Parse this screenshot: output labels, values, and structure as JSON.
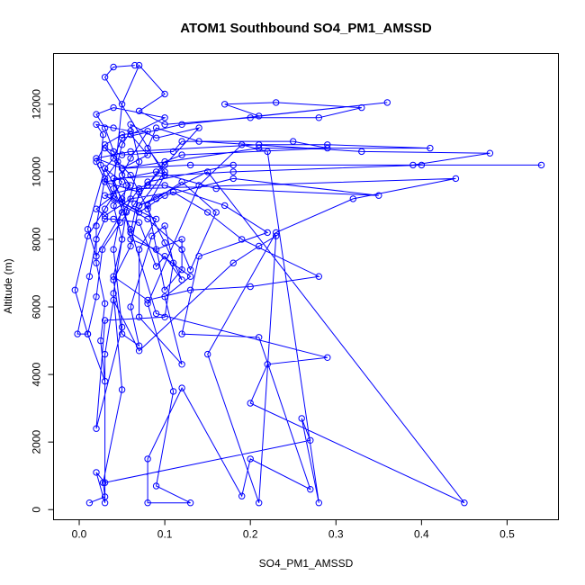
{
  "chart_data": {
    "type": "line",
    "title": "ATOM1 Southbound SO4_PM1_AMSSD",
    "xlabel": "SO4_PM1_AMSSD",
    "ylabel": "Altitude (m)",
    "xlim": [
      -0.03,
      0.56
    ],
    "ylim": [
      -300,
      13500
    ],
    "xticks": [
      0.0,
      0.1,
      0.2,
      0.3,
      0.4,
      0.5
    ],
    "xtick_labels": [
      "0.0",
      "0.1",
      "0.2",
      "0.3",
      "0.4",
      "0.5"
    ],
    "yticks": [
      0,
      2000,
      4000,
      6000,
      8000,
      10000,
      12000
    ],
    "ytick_labels": [
      "0",
      "2000",
      "4000",
      "6000",
      "8000",
      "10000",
      "12000"
    ],
    "grid": false,
    "series_color": "#0000ff",
    "series": [
      {
        "points": [
          [
            0.012,
            200
          ],
          [
            0.03,
            380
          ],
          [
            0.028,
            800
          ],
          [
            0.05,
            3550
          ],
          [
            0.04,
            6400
          ],
          [
            0.055,
            8800
          ],
          [
            0.07,
            10300
          ],
          [
            0.06,
            11400
          ],
          [
            0.09,
            11000
          ],
          [
            0.14,
            11300
          ],
          [
            0.1,
            10200
          ],
          [
            0.08,
            9600
          ],
          [
            0.03,
            9300
          ],
          [
            0.08,
            8600
          ],
          [
            0.12,
            7700
          ],
          [
            0.13,
            7100
          ],
          [
            0.16,
            8800
          ],
          [
            0.12,
            9700
          ],
          [
            0.09,
            9200
          ],
          [
            0.07,
            9000
          ],
          [
            0.15,
            10000
          ],
          [
            0.45,
            200
          ],
          [
            0.2,
            3150
          ],
          [
            0.22,
            4300
          ],
          [
            0.29,
            4500
          ],
          [
            0.09,
            5800
          ],
          [
            0.06,
            8300
          ],
          [
            0.04,
            9500
          ],
          [
            0.05,
            12000
          ],
          [
            0.07,
            13150
          ],
          [
            0.1,
            12300
          ],
          [
            0.07,
            11800
          ],
          [
            0.1,
            11400
          ],
          [
            0.2,
            11600
          ],
          [
            0.28,
            11600
          ],
          [
            0.33,
            11900
          ],
          [
            0.23,
            12050
          ],
          [
            0.17,
            12000
          ],
          [
            0.21,
            11650
          ],
          [
            0.36,
            12050
          ],
          [
            0.12,
            11400
          ],
          [
            0.05,
            11000
          ],
          [
            0.04,
            10400
          ],
          [
            0.03,
            10100
          ],
          [
            0.05,
            9700
          ],
          [
            0.03,
            8900
          ],
          [
            0.01,
            8100
          ],
          [
            -0.005,
            6500
          ],
          [
            0.01,
            5200
          ],
          [
            0.02,
            6300
          ],
          [
            0.027,
            7700
          ],
          [
            0.048,
            8500
          ],
          [
            0.065,
            9050
          ],
          [
            0.08,
            9700
          ],
          [
            0.18,
            10200
          ],
          [
            0.39,
            10200
          ],
          [
            0.48,
            10550
          ],
          [
            0.33,
            10600
          ],
          [
            0.14,
            10900
          ],
          [
            0.09,
            11300
          ],
          [
            0.08,
            10700
          ],
          [
            0.1,
            10000
          ],
          [
            0.07,
            9000
          ],
          [
            0.06,
            7800
          ],
          [
            0.04,
            6800
          ],
          [
            0.05,
            5200
          ],
          [
            0.07,
            4850
          ],
          [
            0.06,
            6000
          ],
          [
            0.085,
            8100
          ],
          [
            0.1,
            8400
          ],
          [
            0.11,
            7300
          ],
          [
            0.1,
            5700
          ],
          [
            0.03,
            5600
          ],
          [
            0.02,
            2400
          ],
          [
            0.05,
            5400
          ],
          [
            0.04,
            7700
          ],
          [
            0.055,
            9600
          ],
          [
            0.03,
            11300
          ],
          [
            0.02,
            11700
          ],
          [
            0.04,
            11900
          ],
          [
            0.1,
            11600
          ],
          [
            0.06,
            11100
          ],
          [
            0.08,
            10500
          ],
          [
            0.05,
            10100
          ],
          [
            0.02,
            10400
          ],
          [
            0.06,
            10600
          ],
          [
            0.21,
            10800
          ],
          [
            0.29,
            10800
          ],
          [
            0.41,
            10700
          ],
          [
            0.21,
            10700
          ],
          [
            0.05,
            10100
          ],
          [
            0.13,
            10200
          ],
          [
            0.54,
            10200
          ],
          [
            0.4,
            10200
          ],
          [
            0.18,
            10000
          ],
          [
            0.04,
            9800
          ],
          [
            0.05,
            9100
          ],
          [
            0.07,
            8800
          ],
          [
            0.1,
            9300
          ],
          [
            0.18,
            9800
          ],
          [
            0.35,
            9300
          ],
          [
            0.16,
            9500
          ],
          [
            0.09,
            10000
          ],
          [
            0.03,
            9700
          ],
          [
            0.07,
            9400
          ],
          [
            0.06,
            8200
          ],
          [
            0.13,
            6900
          ],
          [
            0.1,
            6300
          ],
          [
            0.12,
            4300
          ],
          [
            0.07,
            5700
          ],
          [
            0.07,
            7700
          ],
          [
            0.09,
            8600
          ],
          [
            0.04,
            9200
          ],
          [
            0.02,
            10300
          ],
          [
            0.03,
            10800
          ],
          [
            0.05,
            11100
          ],
          [
            0.08,
            11200
          ],
          [
            0.06,
            10400
          ],
          [
            0.05,
            9900
          ],
          [
            0.06,
            9600
          ],
          [
            0.04,
            9000
          ],
          [
            0.05,
            8000
          ],
          [
            0.04,
            6900
          ],
          [
            0.08,
            6200
          ],
          [
            0.13,
            6500
          ],
          [
            0.2,
            6600
          ],
          [
            0.28,
            6900
          ],
          [
            0.19,
            8000
          ],
          [
            0.15,
            8800
          ],
          [
            0.11,
            9400
          ],
          [
            0.06,
            9200
          ],
          [
            0.03,
            8700
          ],
          [
            0.02,
            8900
          ],
          [
            0.04,
            9300
          ],
          [
            0.025,
            10200
          ],
          [
            0.028,
            11100
          ],
          [
            0.02,
            11400
          ],
          [
            0.04,
            11300
          ],
          [
            0.06,
            11200
          ],
          [
            0.05,
            10800
          ],
          [
            0.045,
            10300
          ],
          [
            0.03,
            9800
          ],
          [
            0.02,
            8400
          ],
          [
            0.02,
            7300
          ],
          [
            0.03,
            6100
          ],
          [
            0.025,
            5000
          ],
          [
            0.03,
            3800
          ],
          [
            0.01,
            5200
          ],
          [
            -0.002,
            5200
          ],
          [
            0.012,
            6900
          ],
          [
            0.02,
            8000
          ],
          [
            0.03,
            8600
          ],
          [
            0.04,
            8600
          ],
          [
            0.07,
            8500
          ],
          [
            0.09,
            7200
          ],
          [
            0.1,
            7500
          ],
          [
            0.12,
            6800
          ],
          [
            0.1,
            7900
          ],
          [
            0.08,
            8900
          ],
          [
            0.06,
            9900
          ],
          [
            0.03,
            10700
          ],
          [
            0.04,
            10600
          ],
          [
            0.05,
            10500
          ],
          [
            0.11,
            10600
          ],
          [
            0.12,
            10900
          ],
          [
            0.25,
            10900
          ],
          [
            0.29,
            10700
          ],
          [
            0.12,
            10500
          ],
          [
            0.1,
            10300
          ],
          [
            0.08,
            9600
          ],
          [
            0.1,
            9600
          ],
          [
            0.17,
            9000
          ],
          [
            0.22,
            8200
          ],
          [
            0.14,
            7500
          ],
          [
            0.12,
            5200
          ],
          [
            0.21,
            5100
          ],
          [
            0.27,
            600
          ],
          [
            0.2,
            1500
          ],
          [
            0.19,
            400
          ],
          [
            0.12,
            3600
          ],
          [
            0.08,
            1500
          ],
          [
            0.08,
            200
          ],
          [
            0.13,
            200
          ],
          [
            0.09,
            700
          ],
          [
            0.11,
            3500
          ],
          [
            0.08,
            6100
          ],
          [
            0.14,
            9600
          ],
          [
            0.19,
            10800
          ],
          [
            0.22,
            10600
          ],
          [
            0.28,
            200
          ],
          [
            0.26,
            2700
          ],
          [
            0.27,
            2050
          ],
          [
            0.03,
            800
          ],
          [
            0.02,
            1100
          ],
          [
            0.03,
            200
          ],
          [
            0.03,
            4600
          ],
          [
            0.04,
            6200
          ],
          [
            0.07,
            4700
          ],
          [
            0.18,
            7300
          ],
          [
            0.21,
            7800
          ],
          [
            0.23,
            8100
          ],
          [
            0.21,
            200
          ],
          [
            0.15,
            4600
          ],
          [
            0.23,
            8200
          ],
          [
            0.32,
            9200
          ],
          [
            0.44,
            9800
          ],
          [
            0.07,
            9500
          ],
          [
            0.05,
            8800
          ],
          [
            0.02,
            7500
          ],
          [
            0.01,
            8300
          ],
          [
            0.03,
            10100
          ],
          [
            0.05,
            9200
          ],
          [
            0.06,
            8000
          ],
          [
            0.09,
            7700
          ],
          [
            0.12,
            8000
          ],
          [
            0.12,
            7100
          ],
          [
            0.1,
            6500
          ],
          [
            0.08,
            9000
          ],
          [
            0.1,
            9900
          ],
          [
            0.03,
            12800
          ],
          [
            0.04,
            13100
          ],
          [
            0.065,
            13150
          ]
        ]
      }
    ]
  }
}
